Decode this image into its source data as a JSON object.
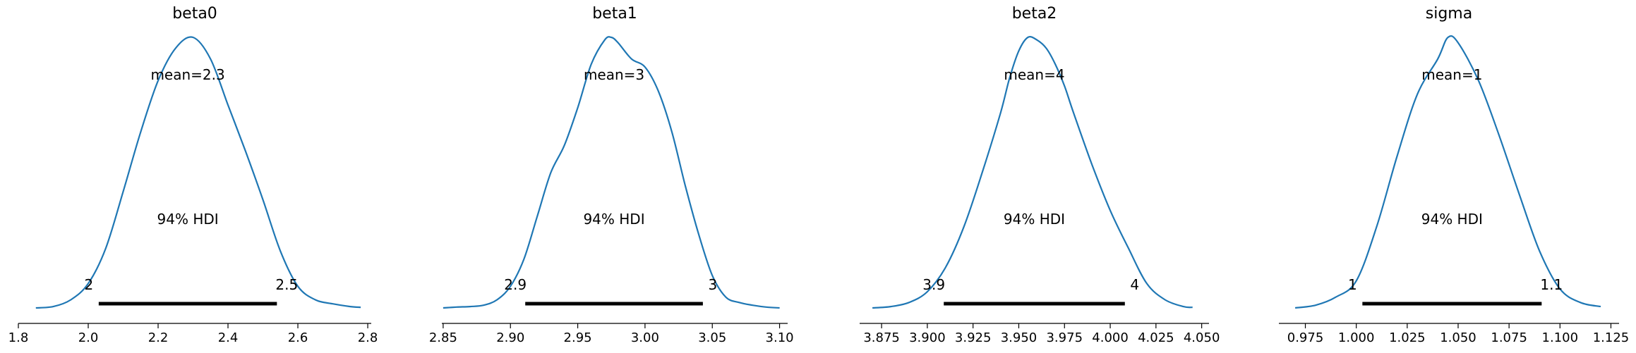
{
  "chart_data": [
    {
      "type": "line",
      "title": "beta0",
      "mean_label": "mean=2.3",
      "hdi_label": "94% HDI",
      "hdi_low_label": "2",
      "hdi_high_label": "2.5",
      "hdi": [
        2.03,
        2.54
      ],
      "xlim": [
        1.8,
        2.81
      ],
      "ticks": [
        1.8,
        2.0,
        2.2,
        2.4,
        2.6,
        2.8
      ],
      "tick_labels": [
        "1.8",
        "2.0",
        "2.2",
        "2.4",
        "2.6",
        "2.8"
      ],
      "x": [
        1.85,
        1.9,
        1.95,
        2.0,
        2.05,
        2.1,
        2.15,
        2.2,
        2.25,
        2.3,
        2.35,
        2.4,
        2.45,
        2.5,
        2.55,
        2.6,
        2.65,
        2.7,
        2.75,
        2.78
      ],
      "y": [
        0.0,
        0.005,
        0.03,
        0.09,
        0.22,
        0.43,
        0.65,
        0.84,
        0.96,
        1.0,
        0.92,
        0.75,
        0.58,
        0.4,
        0.21,
        0.08,
        0.03,
        0.015,
        0.005,
        0.002
      ]
    },
    {
      "type": "line",
      "title": "beta1",
      "mean_label": "mean=3",
      "hdi_label": "94% HDI",
      "hdi_low_label": "2.9",
      "hdi_high_label": "3",
      "hdi": [
        2.911,
        3.043
      ],
      "xlim": [
        2.849,
        3.106
      ],
      "ticks": [
        2.85,
        2.9,
        2.95,
        3.0,
        3.05,
        3.1
      ],
      "tick_labels": [
        "2.85",
        "2.90",
        "2.95",
        "3.00",
        "3.05",
        "3.10"
      ],
      "x": [
        2.85,
        2.86,
        2.87,
        2.88,
        2.89,
        2.9,
        2.91,
        2.92,
        2.93,
        2.94,
        2.95,
        2.96,
        2.97,
        2.975,
        2.98,
        2.99,
        3.0,
        3.01,
        3.02,
        3.03,
        3.04,
        3.05,
        3.06,
        3.07,
        3.08,
        3.09,
        3.1
      ],
      "y": [
        0.0,
        0.003,
        0.005,
        0.01,
        0.03,
        0.08,
        0.18,
        0.34,
        0.5,
        0.6,
        0.74,
        0.9,
        0.99,
        1.0,
        0.98,
        0.92,
        0.89,
        0.8,
        0.65,
        0.45,
        0.27,
        0.12,
        0.04,
        0.02,
        0.01,
        0.003,
        0.0
      ]
    },
    {
      "type": "line",
      "title": "beta2",
      "mean_label": "mean=4",
      "hdi_label": "94% HDI",
      "hdi_low_label": "3.9",
      "hdi_high_label": "4",
      "hdi": [
        3.909,
        4.008
      ],
      "xlim": [
        3.863,
        4.054
      ],
      "ticks": [
        3.875,
        3.9,
        3.925,
        3.95,
        3.975,
        4.0,
        4.025,
        4.05
      ],
      "tick_labels": [
        "3.875",
        "3.900",
        "3.925",
        "3.950",
        "3.975",
        "4.000",
        "4.025",
        "4.050"
      ],
      "x": [
        3.87,
        3.88,
        3.89,
        3.9,
        3.91,
        3.92,
        3.93,
        3.94,
        3.945,
        3.95,
        3.955,
        3.96,
        3.965,
        3.97,
        3.975,
        3.98,
        3.99,
        4.0,
        4.01,
        4.02,
        4.03,
        4.04,
        4.045
      ],
      "y": [
        0.0,
        0.005,
        0.02,
        0.06,
        0.15,
        0.3,
        0.5,
        0.72,
        0.85,
        0.95,
        1.0,
        0.99,
        0.96,
        0.9,
        0.82,
        0.72,
        0.53,
        0.36,
        0.22,
        0.09,
        0.03,
        0.005,
        0.002
      ]
    },
    {
      "type": "line",
      "title": "sigma",
      "mean_label": "mean=1",
      "hdi_label": "94% HDI",
      "hdi_low_label": "1",
      "hdi_high_label": "1.1",
      "hdi": [
        1.003,
        1.091
      ],
      "xlim": [
        0.962,
        1.129
      ],
      "ticks": [
        0.975,
        1.0,
        1.025,
        1.05,
        1.075,
        1.1,
        1.125
      ],
      "tick_labels": [
        "0.975",
        "1.000",
        "1.025",
        "1.050",
        "1.075",
        "1.100",
        "1.125"
      ],
      "x": [
        0.97,
        0.98,
        0.99,
        1.0,
        1.01,
        1.02,
        1.03,
        1.04,
        1.045,
        1.05,
        1.06,
        1.07,
        1.08,
        1.09,
        1.1,
        1.11,
        1.12
      ],
      "y": [
        0.0,
        0.01,
        0.04,
        0.1,
        0.3,
        0.56,
        0.79,
        0.92,
        1.0,
        0.98,
        0.84,
        0.64,
        0.42,
        0.21,
        0.07,
        0.02,
        0.005
      ]
    }
  ]
}
